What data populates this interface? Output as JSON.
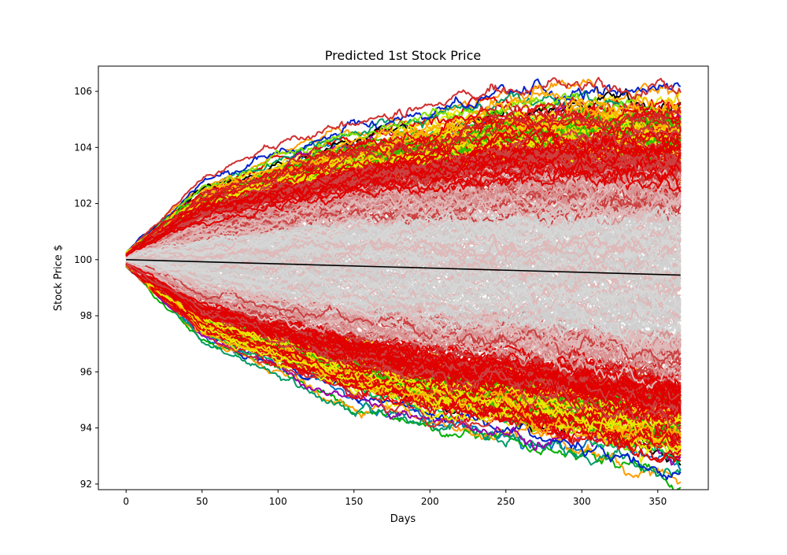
{
  "chart_data": {
    "type": "line",
    "title": "Predicted 1st Stock Price",
    "xlabel": "Days",
    "ylabel": "Stock Price $",
    "xlim": [
      -18.25,
      383.25
    ],
    "ylim": [
      91.8,
      106.9
    ],
    "x_ticks": [
      0,
      50,
      100,
      150,
      200,
      250,
      300,
      350
    ],
    "y_ticks": [
      92,
      94,
      96,
      98,
      100,
      102,
      104,
      106
    ],
    "x_tick_labels": [
      "0",
      "50",
      "100",
      "150",
      "200",
      "250",
      "300",
      "350"
    ],
    "y_tick_labels": [
      "92",
      "94",
      "96",
      "98",
      "100",
      "102",
      "104",
      "106"
    ],
    "grid": false,
    "legend": "none",
    "simulation": {
      "n_days": 365,
      "start_price": 100,
      "envelope_upper": [
        {
          "x": 0,
          "y": 100.2
        },
        {
          "x": 50,
          "y": 102.3
        },
        {
          "x": 100,
          "y": 103.2
        },
        {
          "x": 150,
          "y": 104.0
        },
        {
          "x": 200,
          "y": 104.4
        },
        {
          "x": 250,
          "y": 105.0
        },
        {
          "x": 300,
          "y": 105.1
        },
        {
          "x": 365,
          "y": 105.0
        }
      ],
      "envelope_lower": [
        {
          "x": 0,
          "y": 99.8
        },
        {
          "x": 50,
          "y": 97.6
        },
        {
          "x": 100,
          "y": 96.6
        },
        {
          "x": 150,
          "y": 95.6
        },
        {
          "x": 200,
          "y": 95.0
        },
        {
          "x": 250,
          "y": 94.6
        },
        {
          "x": 300,
          "y": 94.2
        },
        {
          "x": 365,
          "y": 93.5
        }
      ],
      "outer_path_colors": [
        "#0072c6",
        "#00b000",
        "#e8e800",
        "#ff9c00",
        "#e00000",
        "#009a66",
        "#0022cc",
        "#000000",
        "#9900aa",
        "#7fe000",
        "#d03030",
        "#00c060"
      ],
      "band_colors": [
        "#e00000",
        "#e41010",
        "#d02828",
        "#e8e800",
        "#ffb000",
        "#30c000"
      ],
      "inner_colors": [
        "#cfcfcf",
        "#d6d6d6",
        "#e0b8b8",
        "#d89090",
        "#cc4040",
        "#e00000"
      ]
    },
    "series": [
      {
        "color": "#000000",
        "x": [
          0,
          365
        ],
        "y": [
          100.0,
          99.45
        ]
      }
    ]
  }
}
